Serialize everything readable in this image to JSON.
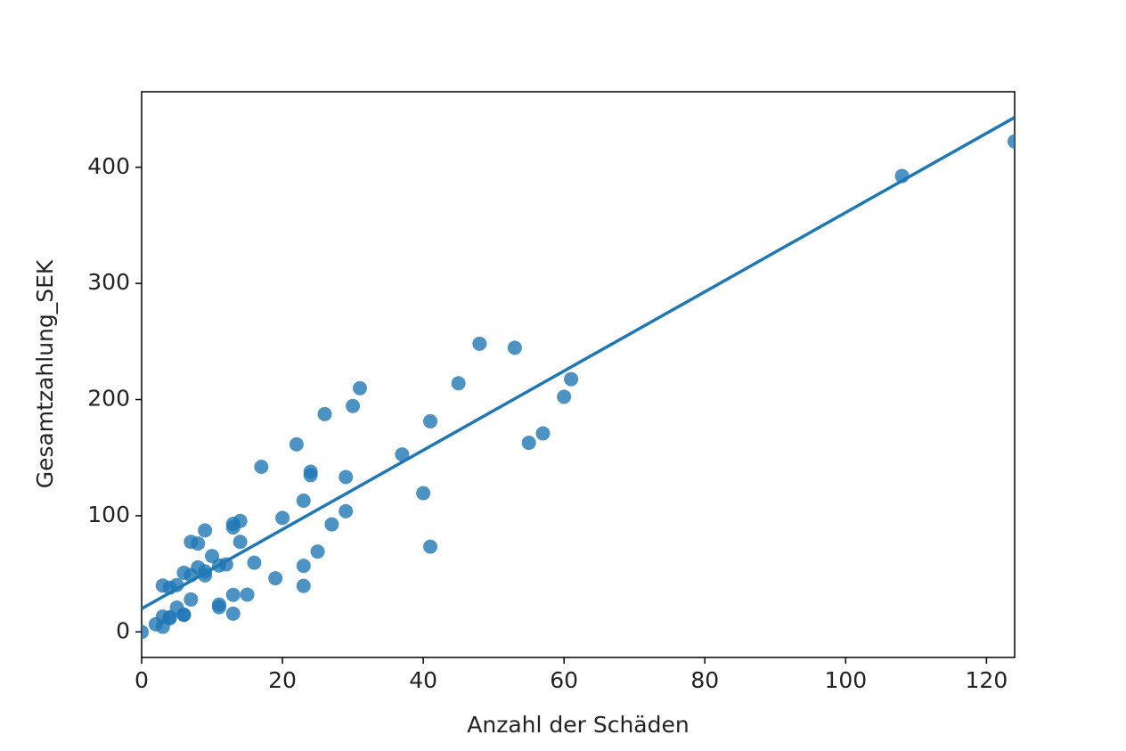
{
  "chart_data": {
    "type": "scatter",
    "x_label": "Anzahl der Schäden",
    "y_label": "Gesamtzahlung_SEK",
    "xlim": [
      0,
      124
    ],
    "ylim": [
      -22,
      465
    ],
    "xticks": [
      0,
      20,
      40,
      60,
      80,
      100,
      120
    ],
    "yticks": [
      0,
      100,
      200,
      300,
      400
    ],
    "color": "#1f77b4",
    "x": [
      108,
      19,
      13,
      124,
      40,
      57,
      23,
      14,
      45,
      10,
      5,
      48,
      11,
      23,
      7,
      2,
      24,
      6,
      3,
      23,
      6,
      9,
      9,
      3,
      29,
      7,
      4,
      20,
      7,
      4,
      0,
      25,
      6,
      5,
      22,
      11,
      61,
      12,
      4,
      16,
      13,
      60,
      41,
      37,
      55,
      41,
      11,
      27,
      8,
      3,
      17,
      13,
      13,
      15,
      8,
      29,
      30,
      24,
      9,
      31,
      14,
      53,
      26
    ],
    "y": [
      392.5,
      46.2,
      15.7,
      422.2,
      119.4,
      170.9,
      56.9,
      77.5,
      214,
      65.3,
      20.9,
      248.1,
      23.5,
      39.6,
      48.8,
      6.6,
      134.9,
      50.9,
      4.4,
      113,
      14.8,
      48.7,
      52.1,
      13.2,
      103.9,
      77.5,
      11.8,
      98.1,
      27.9,
      38.1,
      0,
      69.2,
      14.6,
      40.3,
      161.5,
      57.2,
      217.6,
      58.1,
      12.6,
      59.6,
      89.9,
      202.4,
      181.3,
      152.8,
      162.8,
      73.4,
      21.3,
      92.6,
      76.1,
      39.9,
      142.1,
      93,
      31.9,
      32.1,
      55.6,
      133.3,
      194.5,
      137.9,
      87.4,
      209.8,
      95.5,
      244.6,
      187.5
    ],
    "regression": {
      "x": [
        0,
        124
      ],
      "y": [
        19.99,
        442.9
      ]
    }
  }
}
